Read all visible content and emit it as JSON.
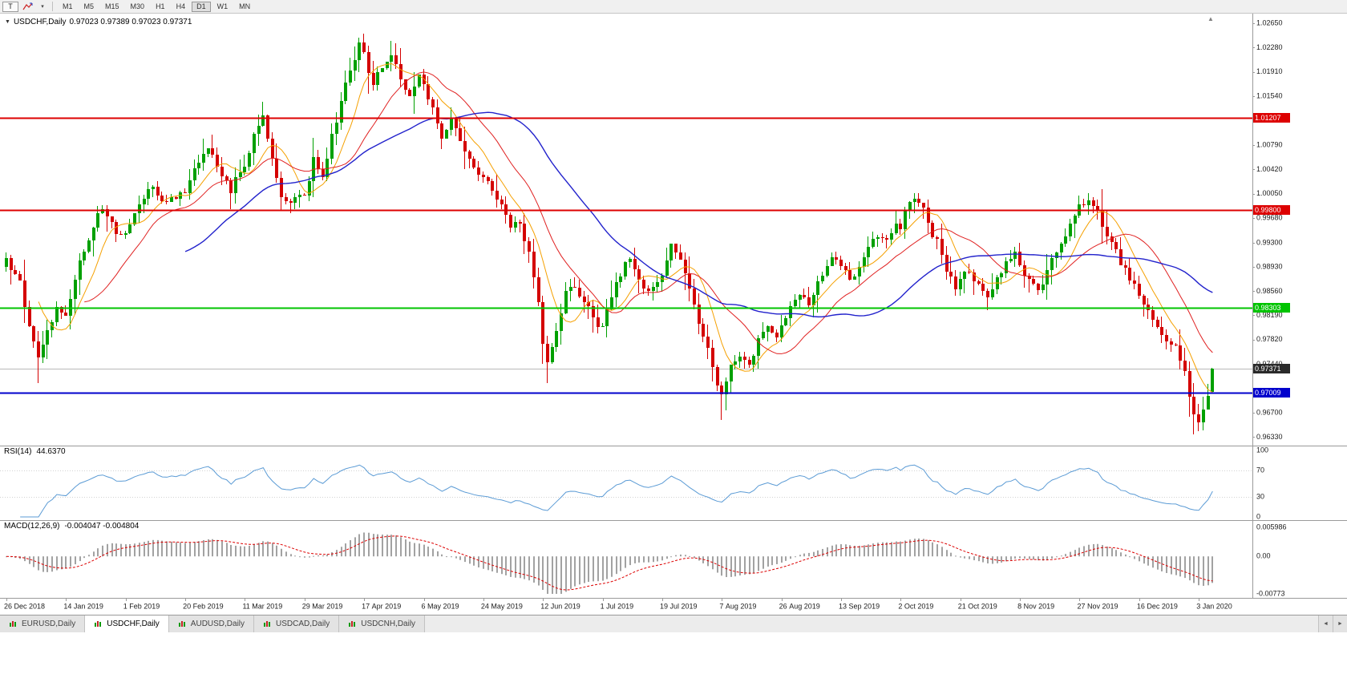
{
  "toolbar": {
    "tool_button": "T",
    "timeframes": [
      "M1",
      "M5",
      "M15",
      "M30",
      "H1",
      "H4",
      "D1",
      "W1",
      "MN"
    ],
    "active_timeframe": "D1"
  },
  "ui": {
    "icons": {
      "title_collapse": "▼",
      "caret": "▾",
      "shift_marker": "▲",
      "scroll_left": "◄",
      "scroll_right": "►"
    }
  },
  "chart": {
    "title_symbol": "USDCHF,Daily",
    "title_ohlc": "0.97023 0.97389 0.97023 0.97371",
    "rsi_label": "RSI(14)",
    "rsi_value": "44.6370",
    "macd_label": "MACD(12,26,9)",
    "macd_values": "-0.004047 -0.004804"
  },
  "tabs": {
    "items": [
      "EURUSD,Daily",
      "USDCHF,Daily",
      "AUDUSD,Daily",
      "USDCAD,Daily",
      "USDCNH,Daily"
    ],
    "active": "USDCHF,Daily"
  },
  "chart_data": {
    "type": "candlestick",
    "symbol": "USDCHF",
    "period": "Daily",
    "current_ohlc": {
      "open": 0.97023,
      "high": 0.97389,
      "low": 0.97023,
      "close": 0.97371
    },
    "num_bars": 264,
    "bar_spacing": 5.72,
    "x_label_every": 13,
    "price_axis": {
      "min": 0.962,
      "max": 1.028,
      "ticks": [
        "1.02650",
        "1.02280",
        "1.01910",
        "1.01540",
        "1.00790",
        "1.00420",
        "1.00050",
        "0.99680",
        "0.99300",
        "0.98930",
        "0.98560",
        "0.98190",
        "0.97820",
        "0.97440",
        "0.96700",
        "0.96330"
      ]
    },
    "hlines": [
      {
        "label": "1.01207",
        "value": 1.01207,
        "color": "#dd0000",
        "line_width": 2,
        "type": "resistance"
      },
      {
        "label": "0.99800",
        "value": 0.998,
        "color": "#dd0000",
        "line_width": 2,
        "type": "resistance"
      },
      {
        "label": "0.98303",
        "value": 0.98303,
        "color": "#00c400",
        "line_width": 2,
        "type": "support"
      },
      {
        "label": "0.97009",
        "value": 0.97009,
        "color": "#0000cc",
        "line_width": 2,
        "type": "support"
      },
      {
        "label": "0.97371",
        "value": 0.97371,
        "color": "#2a2a2a",
        "line_width": 1,
        "type": "current-bid"
      }
    ],
    "x_labels": [
      "26 Dec 2018",
      "14 Jan 2019",
      "1 Feb 2019",
      "20 Feb 2019",
      "11 Mar 2019",
      "29 Mar 2019",
      "17 Apr 2019",
      "6 May 2019",
      "24 May 2019",
      "12 Jun 2019",
      "1 Jul 2019",
      "19 Jul 2019",
      "7 Aug 2019",
      "26 Aug 2019",
      "13 Sep 2019",
      "2 Oct 2019",
      "21 Oct 2019",
      "8 Nov 2019",
      "27 Nov 2019",
      "16 Dec 2019",
      "3 Jan 2020"
    ],
    "close_anchors": [
      [
        0,
        0.99
      ],
      [
        3,
        0.9868
      ],
      [
        5,
        0.9805
      ],
      [
        7,
        0.976
      ],
      [
        9,
        0.9795
      ],
      [
        11,
        0.983
      ],
      [
        13,
        0.9825
      ],
      [
        16,
        0.99
      ],
      [
        19,
        0.9955
      ],
      [
        21,
        0.9985
      ],
      [
        24,
        0.9945
      ],
      [
        26,
        0.9945
      ],
      [
        29,
        0.999
      ],
      [
        32,
        1.0015
      ],
      [
        34,
        0.999
      ],
      [
        36,
        1.0
      ],
      [
        39,
        1.0005
      ],
      [
        42,
        1.0055
      ],
      [
        44,
        1.008
      ],
      [
        46,
        1.004
      ],
      [
        49,
        1.001
      ],
      [
        52,
        1.005
      ],
      [
        54,
        1.0095
      ],
      [
        56,
        1.0125
      ],
      [
        58,
        1.0055
      ],
      [
        60,
        1.0
      ],
      [
        63,
        0.9995
      ],
      [
        65,
        1.0005
      ],
      [
        67,
        1.0055
      ],
      [
        69,
        1.0035
      ],
      [
        71,
        1.009
      ],
      [
        73,
        1.015
      ],
      [
        75,
        1.02
      ],
      [
        77,
        1.023
      ],
      [
        78,
        1.0215
      ],
      [
        80,
        1.0175
      ],
      [
        82,
        1.02
      ],
      [
        84,
        1.022
      ],
      [
        86,
        1.0185
      ],
      [
        88,
        1.0155
      ],
      [
        90,
        1.0185
      ],
      [
        91,
        1.017
      ],
      [
        93,
        1.0135
      ],
      [
        95,
        1.0095
      ],
      [
        97,
        1.012
      ],
      [
        99,
        1.008
      ],
      [
        101,
        1.0055
      ],
      [
        104,
        1.003
      ],
      [
        106,
        1.0015
      ],
      [
        108,
        0.9985
      ],
      [
        110,
        0.9955
      ],
      [
        112,
        0.9965
      ],
      [
        114,
        0.991
      ],
      [
        116,
        0.9835
      ],
      [
        117,
        0.978
      ],
      [
        118,
        0.9745
      ],
      [
        120,
        0.98
      ],
      [
        122,
        0.985
      ],
      [
        124,
        0.9868
      ],
      [
        126,
        0.984
      ],
      [
        128,
        0.9812
      ],
      [
        130,
        0.98
      ],
      [
        132,
        0.985
      ],
      [
        134,
        0.9885
      ],
      [
        136,
        0.9905
      ],
      [
        138,
        0.9878
      ],
      [
        140,
        0.985
      ],
      [
        142,
        0.9872
      ],
      [
        143,
        0.9885
      ],
      [
        145,
        0.993
      ],
      [
        147,
        0.991
      ],
      [
        149,
        0.9862
      ],
      [
        151,
        0.9812
      ],
      [
        153,
        0.9765
      ],
      [
        155,
        0.9715
      ],
      [
        156,
        0.97
      ],
      [
        158,
        0.974
      ],
      [
        160,
        0.9762
      ],
      [
        162,
        0.9745
      ],
      [
        164,
        0.9778
      ],
      [
        166,
        0.9802
      ],
      [
        168,
        0.979
      ],
      [
        169,
        0.98
      ],
      [
        171,
        0.983
      ],
      [
        173,
        0.9852
      ],
      [
        175,
        0.984
      ],
      [
        177,
        0.9872
      ],
      [
        179,
        0.9898
      ],
      [
        181,
        0.991
      ],
      [
        182,
        0.9898
      ],
      [
        184,
        0.9868
      ],
      [
        186,
        0.9888
      ],
      [
        188,
        0.9918
      ],
      [
        190,
        0.9945
      ],
      [
        192,
        0.9928
      ],
      [
        194,
        0.9962
      ],
      [
        195,
        0.9952
      ],
      [
        197,
        0.9992
      ],
      [
        199,
        0.9998
      ],
      [
        201,
        0.9955
      ],
      [
        203,
        0.993
      ],
      [
        205,
        0.9885
      ],
      [
        207,
        0.9862
      ],
      [
        208,
        0.987
      ],
      [
        210,
        0.9888
      ],
      [
        212,
        0.9862
      ],
      [
        214,
        0.985
      ],
      [
        216,
        0.9878
      ],
      [
        218,
        0.9898
      ],
      [
        220,
        0.9912
      ],
      [
        221,
        0.99
      ],
      [
        223,
        0.9872
      ],
      [
        225,
        0.9855
      ],
      [
        227,
        0.9888
      ],
      [
        229,
        0.992
      ],
      [
        231,
        0.994
      ],
      [
        233,
        0.9968
      ],
      [
        234,
        0.9985
      ],
      [
        236,
        0.9998
      ],
      [
        238,
        0.9975
      ],
      [
        240,
        0.9945
      ],
      [
        242,
        0.9915
      ],
      [
        244,
        0.989
      ],
      [
        246,
        0.9868
      ],
      [
        247,
        0.9852
      ],
      [
        249,
        0.9828
      ],
      [
        251,
        0.9805
      ],
      [
        253,
        0.9782
      ],
      [
        255,
        0.977
      ],
      [
        257,
        0.9735
      ],
      [
        258,
        0.97
      ],
      [
        259,
        0.9665
      ],
      [
        260,
        0.9652
      ],
      [
        261,
        0.9672
      ],
      [
        262,
        0.97
      ],
      [
        263,
        0.97371
      ]
    ],
    "wick_overrides": {
      "lows": [
        [
          7,
          0.9716
        ],
        [
          118,
          0.9716
        ],
        [
          156,
          0.9659
        ],
        [
          259,
          0.9637
        ]
      ],
      "highs": [
        [
          77,
          1.0243
        ],
        [
          84,
          1.0238
        ]
      ]
    },
    "style": {
      "up_color": "#00a000",
      "down_color": "#d40000",
      "bid_line_color": "#b8b8b8"
    },
    "ma": [
      {
        "name": "MA-fast",
        "period": 8,
        "color": "#f5a000"
      },
      {
        "name": "MA-mid",
        "period": 18,
        "color": "#e02020"
      },
      {
        "name": "MA-slow",
        "period": 40,
        "color": "#2222cc"
      }
    ],
    "rsi": {
      "period": 14,
      "current": 44.637,
      "color": "#5b9bd5",
      "levels": [
        70,
        30
      ],
      "ticks": [
        "100",
        "70",
        "30",
        "0"
      ]
    },
    "macd": {
      "fast": 12,
      "slow": 26,
      "signal": 9,
      "current_macd": -0.004047,
      "current_signal": -0.004804,
      "axis_max": 0.005986,
      "axis_min": -0.00773,
      "ticks": [
        "0.005986",
        "0.00",
        "-0.00773"
      ],
      "histogram_color": "#a2a2a2",
      "signal_color": "#dd0000"
    }
  }
}
